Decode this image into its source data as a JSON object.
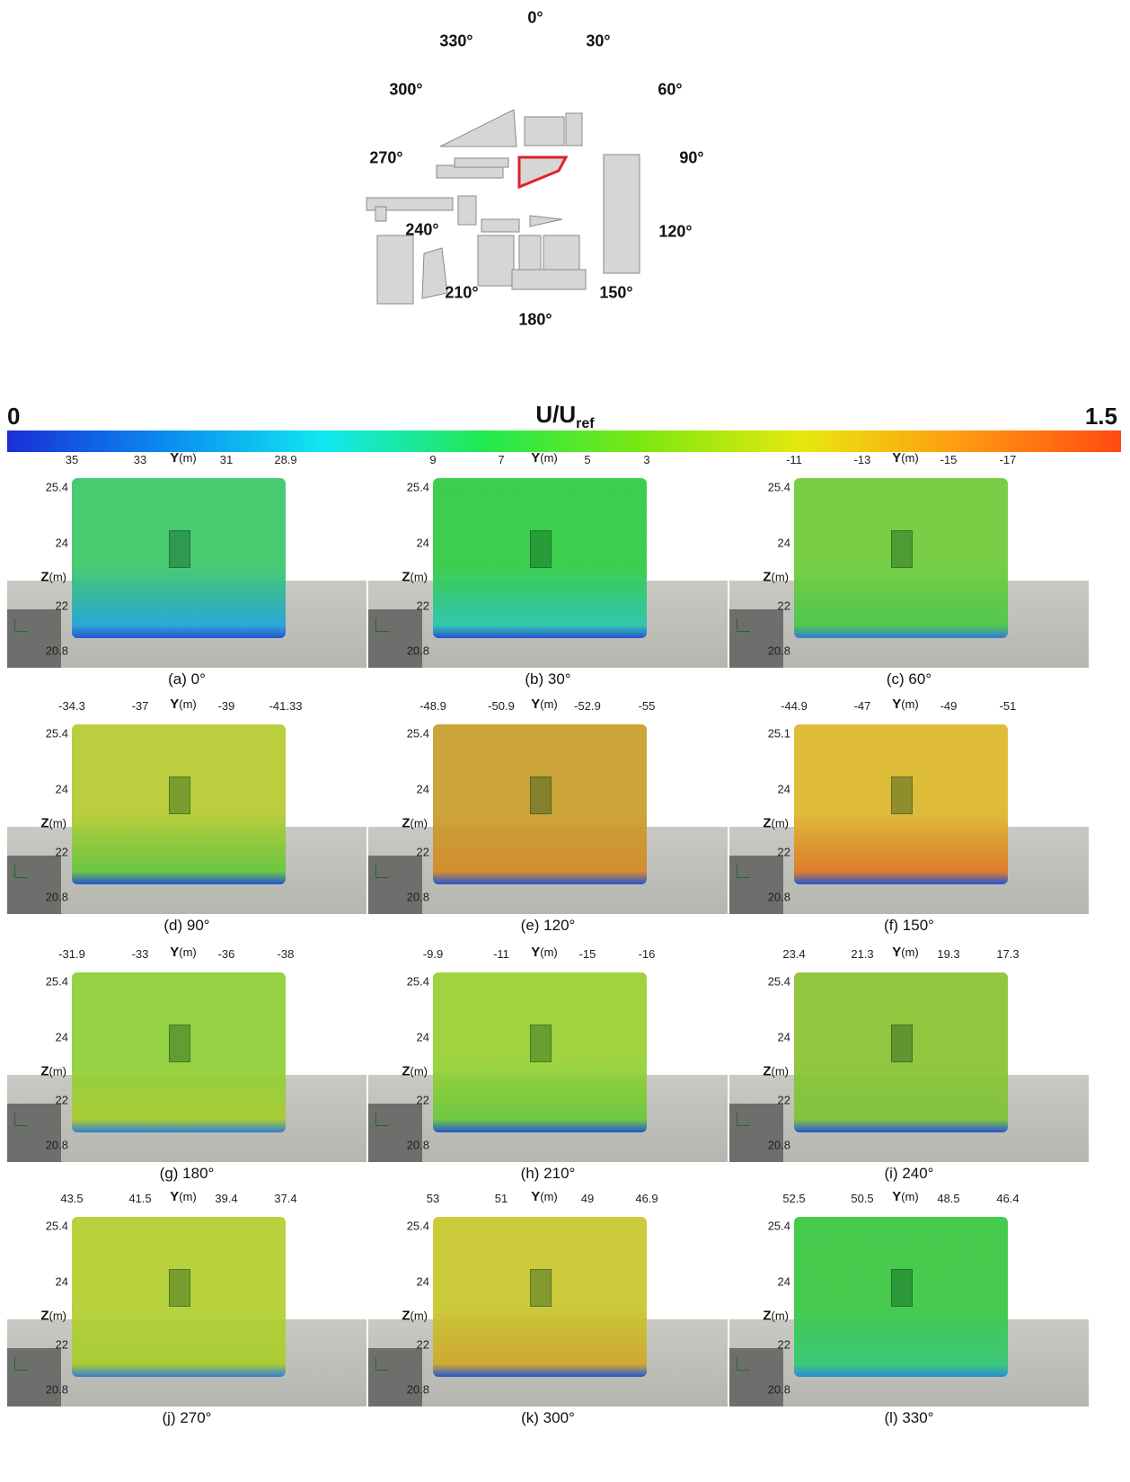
{
  "compass": {
    "angles": [
      {
        "label": "0°"
      },
      {
        "label": "30°"
      },
      {
        "label": "60°"
      },
      {
        "label": "90°"
      },
      {
        "label": "120°"
      },
      {
        "label": "150°"
      },
      {
        "label": "180°"
      },
      {
        "label": "210°"
      },
      {
        "label": "240°"
      },
      {
        "label": "270°"
      },
      {
        "label": "300°"
      },
      {
        "label": "330°"
      }
    ],
    "highlight_color": "#e0202a"
  },
  "colorbar": {
    "min": "0",
    "max": "1.5",
    "label_main": "U/U",
    "label_sub": "ref",
    "colors": [
      "#1a2fd6",
      "#0a8cf0",
      "#12e8f0",
      "#22e850",
      "#7ce810",
      "#e8e810",
      "#ff9a10",
      "#ff4a10"
    ]
  },
  "panels": [
    {
      "caption": "(a) 0°",
      "yticks": [
        "35",
        "33",
        "31",
        "28.9"
      ],
      "zticks": [
        "25.4",
        "24",
        "22",
        "20.8"
      ],
      "top": "#3fc86a",
      "bottom": "#23a6d6",
      "base": "#1d4fd6"
    },
    {
      "caption": "(b) 30°",
      "yticks": [
        "9",
        "7",
        "5",
        "3"
      ],
      "zticks": [
        "25.4",
        "24",
        "22",
        "20.8"
      ],
      "top": "#33cc44",
      "bottom": "#2cc6b0",
      "base": "#1d4fd6"
    },
    {
      "caption": "(c) 60°",
      "yticks": [
        "-11",
        "-13",
        "-15",
        "-17"
      ],
      "zticks": [
        "25.4",
        "24",
        "22",
        "20.8"
      ],
      "top": "#70cc3a",
      "bottom": "#4cc64c",
      "base": "#2a7ad6"
    },
    {
      "caption": "(d) 90°",
      "yticks": [
        "-34.3",
        "-37",
        "-39",
        "-41.33"
      ],
      "zticks": [
        "25.4",
        "24",
        "22",
        "20.8"
      ],
      "top": "#b6cc34",
      "bottom": "#68c63c",
      "base": "#1d4fd6"
    },
    {
      "caption": "(e) 120°",
      "yticks": [
        "-48.9",
        "-50.9",
        "-52.9",
        "-55"
      ],
      "zticks": [
        "25.4",
        "24",
        "22",
        "20.8"
      ],
      "top": "#c8a030",
      "bottom": "#d48a28",
      "base": "#1d4fd6"
    },
    {
      "caption": "(f) 150°",
      "yticks": [
        "-44.9",
        "-47",
        "-49",
        "-51"
      ],
      "zticks": [
        "25.1",
        "24",
        "22",
        "20.8"
      ],
      "top": "#dcb830",
      "bottom": "#e07a26",
      "base": "#1d4fd6"
    },
    {
      "caption": "(g) 180°",
      "yticks": [
        "-31.9",
        "-33",
        "-36",
        "-38"
      ],
      "zticks": [
        "25.4",
        "24",
        "22",
        "20.8"
      ],
      "top": "#8ed03a",
      "bottom": "#a8cc30",
      "base": "#2a7ad6"
    },
    {
      "caption": "(h) 210°",
      "yticks": [
        "-9.9",
        "-11",
        "-15",
        "-16"
      ],
      "zticks": [
        "25.4",
        "24",
        "22",
        "20.8"
      ],
      "top": "#9ad236",
      "bottom": "#6cc83c",
      "base": "#1d4fd6"
    },
    {
      "caption": "(i) 240°",
      "yticks": [
        "23.4",
        "21.3",
        "19.3",
        "17.3"
      ],
      "zticks": [
        "25.4",
        "24",
        "22",
        "20.8"
      ],
      "top": "#8cc436",
      "bottom": "#7ec43a",
      "base": "#1d4fd6"
    },
    {
      "caption": "(j) 270°",
      "yticks": [
        "43.5",
        "41.5",
        "39.4",
        "37.4"
      ],
      "zticks": [
        "25.4",
        "24",
        "22",
        "20.8"
      ],
      "top": "#b4d034",
      "bottom": "#a8cc30",
      "base": "#2a7ad6"
    },
    {
      "caption": "(k) 300°",
      "yticks": [
        "53",
        "51",
        "49",
        "46.9"
      ],
      "zticks": [
        "25.4",
        "24",
        "22",
        "20.8"
      ],
      "top": "#c8c832",
      "bottom": "#d0a82c",
      "base": "#1d4fd6"
    },
    {
      "caption": "(l) 330°",
      "yticks": [
        "52.5",
        "50.5",
        "48.5",
        "46.4"
      ],
      "zticks": [
        "25.4",
        "24",
        "22",
        "20.8"
      ],
      "top": "#3cc844",
      "bottom": "#36c878",
      "base": "#1d8ad6"
    }
  ],
  "axis": {
    "y_name": "Y",
    "z_name": "Z",
    "unit": "(m)"
  }
}
